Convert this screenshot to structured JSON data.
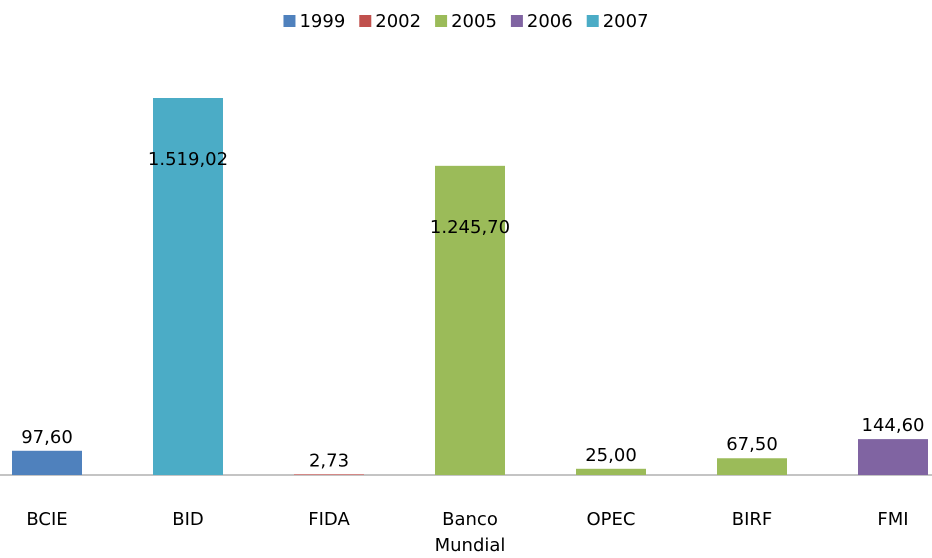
{
  "chart_data": {
    "type": "bar",
    "categories": [
      "BCIE",
      "BID",
      "FIDA",
      "Banco Mundial",
      "OPEC",
      "BIRF",
      "FMI"
    ],
    "series": [
      {
        "name": "1999",
        "color": "#4f81bd",
        "values": [
          97.6,
          null,
          null,
          null,
          null,
          null,
          null
        ],
        "value_labels": [
          "97,60",
          null,
          null,
          null,
          null,
          null,
          null
        ]
      },
      {
        "name": "2002",
        "color": "#c0504d",
        "values": [
          null,
          null,
          2.73,
          null,
          null,
          null,
          null
        ],
        "value_labels": [
          null,
          null,
          "2,73",
          null,
          null,
          null,
          null
        ]
      },
      {
        "name": "2005",
        "color": "#9bbb59",
        "values": [
          null,
          null,
          null,
          1245.7,
          25.0,
          67.5,
          null
        ],
        "value_labels": [
          null,
          null,
          null,
          "1.245,70",
          "25,00",
          "67,50",
          null
        ]
      },
      {
        "name": "2006",
        "color": "#8064a2",
        "values": [
          null,
          null,
          null,
          null,
          null,
          null,
          144.6
        ],
        "value_labels": [
          null,
          null,
          null,
          null,
          null,
          null,
          "144,60"
        ]
      },
      {
        "name": "2007",
        "color": "#4bacc6",
        "values": [
          null,
          1519.02,
          null,
          null,
          null,
          null,
          null
        ],
        "value_labels": [
          null,
          "1.519,02",
          null,
          null,
          null,
          null,
          null
        ]
      }
    ],
    "legend": "top"
  }
}
